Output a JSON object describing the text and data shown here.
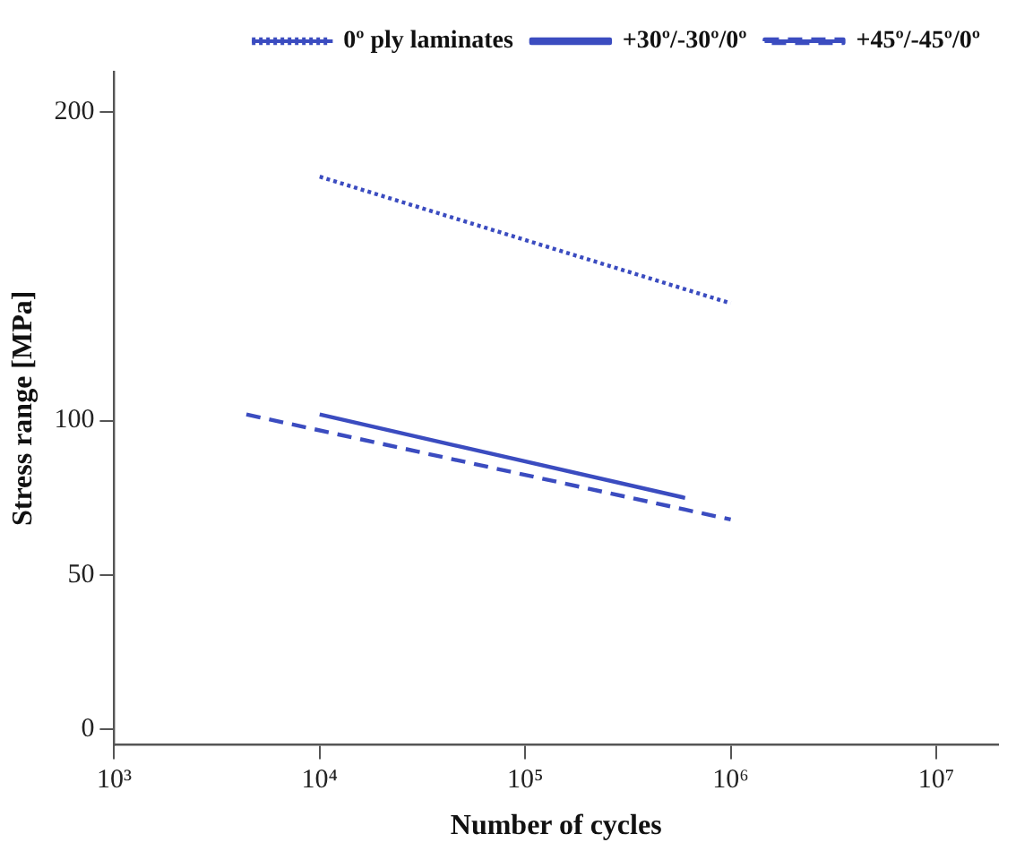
{
  "chart_data": {
    "type": "line",
    "xlabel": "Number of cycles",
    "ylabel": "Stress range [MPa]",
    "log": "x",
    "xlim": [
      1000,
      20000000
    ],
    "xticks": [
      {
        "value": 1000,
        "label": "10³"
      },
      {
        "value": 10000,
        "label": "10⁴"
      },
      {
        "value": 100000,
        "label": "10⁵"
      },
      {
        "value": 1000000,
        "label": "10⁶"
      },
      {
        "value": 10000000,
        "label": "10⁷"
      }
    ],
    "ylim": [
      -5,
      213
    ],
    "yticks": [
      0,
      50,
      100,
      200
    ],
    "grid": false,
    "legend": "top right",
    "marker": "none",
    "series": [
      {
        "name": "0º ply laminates",
        "color": "#3b4cc0",
        "line_style": "dotted",
        "x": [
          10000,
          1000000
        ],
        "values": [
          179,
          138
        ]
      },
      {
        "name": "+30º/-30º/0º",
        "color": "#3b4cc0",
        "line_style": "solid",
        "x": [
          10000,
          600000
        ],
        "values": [
          102,
          75
        ]
      },
      {
        "name": "+45º/-45º/0º",
        "color": "#3b4cc0",
        "line_style": "dashed",
        "x": [
          4400,
          1000000
        ],
        "values": [
          102,
          68
        ]
      }
    ]
  }
}
